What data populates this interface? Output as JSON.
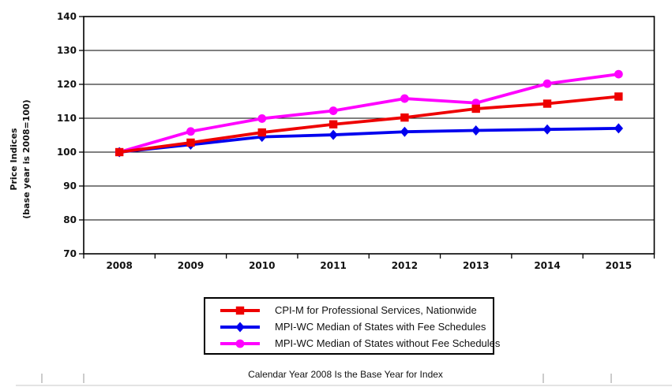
{
  "figure": {
    "caption": "Calendar Year 2008 Is the Base Year for Index"
  },
  "chart_data": {
    "type": "line",
    "title": "",
    "ylabel_line1": "Price Indices",
    "ylabel_line2": "(base year is 2008=100)",
    "xlabel": "",
    "categories": [
      "2008",
      "2009",
      "2010",
      "2011",
      "2012",
      "2013",
      "2014",
      "2015"
    ],
    "yticks": [
      70,
      80,
      90,
      100,
      110,
      120,
      130,
      140
    ],
    "ylim": [
      70,
      140
    ],
    "grid": "horizontal",
    "legend_position": "bottom",
    "series": [
      {
        "id": "cpi-m",
        "name": "CPI-M for Professional Services, Nationwide",
        "marker": "square",
        "color": "#ee0000",
        "values": [
          100,
          102.8,
          105.8,
          108.2,
          110.2,
          112.8,
          114.3,
          116.4
        ]
      },
      {
        "id": "mpi-wc-with-fs",
        "name": "MPI-WC Median of States with Fee Schedules",
        "marker": "diamond",
        "color": "#0000ee",
        "values": [
          100,
          102.2,
          104.5,
          105.1,
          106.0,
          106.4,
          106.7,
          107.0
        ]
      },
      {
        "id": "mpi-wc-without-fs",
        "name": "MPI-WC Median of States without Fee Schedules",
        "marker": "circle",
        "color": "#ff00ff",
        "values": [
          100,
          106.1,
          109.9,
          112.2,
          115.8,
          114.5,
          120.2,
          123.0
        ]
      }
    ]
  }
}
